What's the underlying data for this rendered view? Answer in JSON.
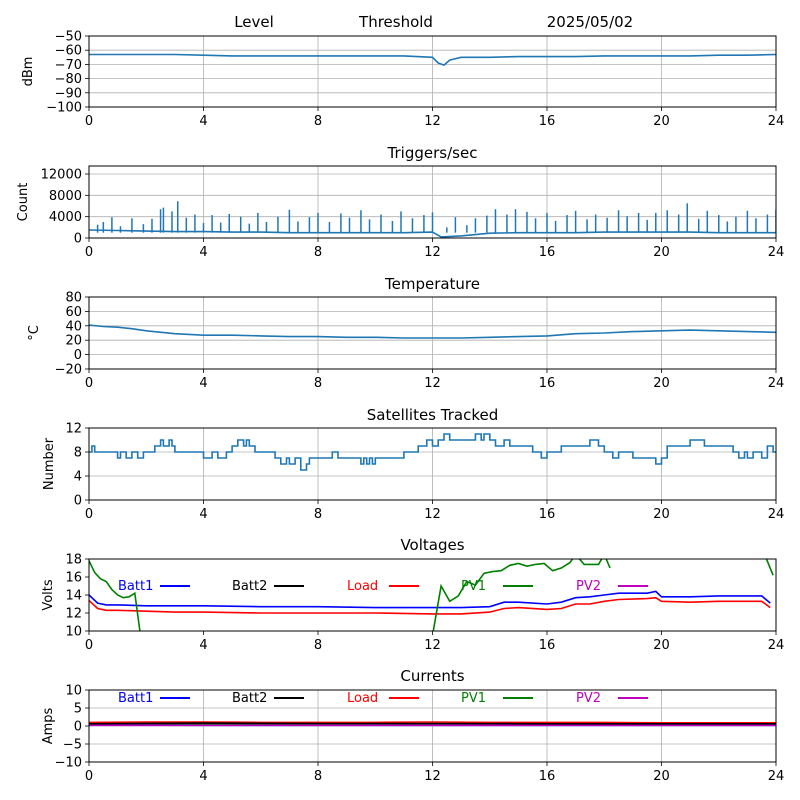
{
  "chart_data": [
    {
      "type": "line",
      "title_parts": [
        "Level",
        "Threshold",
        "2025/05/02"
      ],
      "ylabel": "dBm",
      "ylim": [
        -100,
        -50
      ],
      "yticks": [
        -50,
        -60,
        -70,
        -80,
        -90,
        -100
      ],
      "xlim": [
        0,
        24
      ],
      "xticks": [
        0,
        4,
        8,
        12,
        16,
        20,
        24
      ],
      "grid": true,
      "series": [
        {
          "color": "#1f77b4",
          "x": [
            0,
            1,
            2,
            3,
            4,
            5,
            6,
            7,
            8,
            9,
            10,
            11,
            12,
            12.2,
            12.4,
            12.6,
            13,
            14,
            15,
            16,
            17,
            18,
            19,
            20,
            21,
            22,
            23,
            24
          ],
          "y": [
            -63,
            -63,
            -63,
            -63,
            -63.5,
            -64,
            -64,
            -64,
            -64,
            -64,
            -64,
            -64,
            -65,
            -69,
            -70.5,
            -67,
            -65,
            -65,
            -64.5,
            -64.5,
            -64.5,
            -64,
            -64,
            -64,
            -64,
            -63.5,
            -63.5,
            -63
          ]
        }
      ]
    },
    {
      "type": "line",
      "title": "Triggers/sec",
      "ylabel": "Count",
      "ylim": [
        0,
        13500
      ],
      "yticks": [
        0,
        4000,
        8000,
        12000
      ],
      "xlim": [
        0,
        24
      ],
      "xticks": [
        0,
        4,
        8,
        12,
        16,
        20,
        24
      ],
      "grid": true,
      "baseline": [
        [
          0,
          1500
        ],
        [
          1,
          1400
        ],
        [
          2,
          1300
        ],
        [
          3,
          1200
        ],
        [
          4,
          1200
        ],
        [
          5,
          1100
        ],
        [
          6,
          1100
        ],
        [
          7,
          1000
        ],
        [
          8,
          1000
        ],
        [
          9,
          1000
        ],
        [
          10,
          1000
        ],
        [
          11,
          1000
        ],
        [
          12,
          1100
        ],
        [
          12.3,
          200
        ],
        [
          13,
          400
        ],
        [
          14,
          900
        ],
        [
          15,
          1000
        ],
        [
          16,
          1000
        ],
        [
          17,
          1000
        ],
        [
          18,
          1100
        ],
        [
          19,
          1100
        ],
        [
          20,
          1100
        ],
        [
          21,
          1100
        ],
        [
          22,
          1000
        ],
        [
          23,
          1000
        ],
        [
          24,
          1000
        ]
      ],
      "spikes": [
        [
          0.3,
          2500
        ],
        [
          0.5,
          3000
        ],
        [
          0.8,
          3900
        ],
        [
          1.1,
          2200
        ],
        [
          1.5,
          3700
        ],
        [
          1.9,
          2600
        ],
        [
          2.2,
          3600
        ],
        [
          2.5,
          5400
        ],
        [
          2.6,
          5700
        ],
        [
          2.9,
          5000
        ],
        [
          3.1,
          6900
        ],
        [
          3.4,
          3800
        ],
        [
          3.7,
          4400
        ],
        [
          4.0,
          2800
        ],
        [
          4.3,
          4300
        ],
        [
          4.6,
          2900
        ],
        [
          4.9,
          4500
        ],
        [
          5.3,
          4000
        ],
        [
          5.6,
          2700
        ],
        [
          5.9,
          4700
        ],
        [
          6.2,
          3000
        ],
        [
          6.6,
          4000
        ],
        [
          7.0,
          5300
        ],
        [
          7.3,
          3100
        ],
        [
          7.7,
          3900
        ],
        [
          8.0,
          4700
        ],
        [
          8.4,
          3000
        ],
        [
          8.8,
          4600
        ],
        [
          9.1,
          3800
        ],
        [
          9.5,
          5200
        ],
        [
          9.8,
          3500
        ],
        [
          10.2,
          4400
        ],
        [
          10.6,
          3200
        ],
        [
          10.9,
          5000
        ],
        [
          11.3,
          3700
        ],
        [
          11.7,
          4300
        ],
        [
          12.0,
          4800
        ],
        [
          12.5,
          2000
        ],
        [
          12.8,
          3900
        ],
        [
          13.2,
          2400
        ],
        [
          13.5,
          3700
        ],
        [
          13.9,
          4200
        ],
        [
          14.2,
          5400
        ],
        [
          14.6,
          4400
        ],
        [
          14.9,
          5400
        ],
        [
          15.3,
          4900
        ],
        [
          15.6,
          3700
        ],
        [
          16.0,
          4700
        ],
        [
          16.3,
          3200
        ],
        [
          16.7,
          4300
        ],
        [
          17.0,
          5100
        ],
        [
          17.4,
          3500
        ],
        [
          17.7,
          4400
        ],
        [
          18.1,
          3800
        ],
        [
          18.5,
          5200
        ],
        [
          18.8,
          4100
        ],
        [
          19.2,
          4700
        ],
        [
          19.5,
          3400
        ],
        [
          19.8,
          4700
        ],
        [
          20.2,
          5200
        ],
        [
          20.6,
          4400
        ],
        [
          20.9,
          6500
        ],
        [
          21.3,
          3600
        ],
        [
          21.6,
          5100
        ],
        [
          22.0,
          4300
        ],
        [
          22.3,
          3100
        ],
        [
          22.6,
          4000
        ],
        [
          23.0,
          5100
        ],
        [
          23.3,
          3700
        ],
        [
          23.7,
          4400
        ],
        [
          24.0,
          5300
        ]
      ]
    },
    {
      "type": "line",
      "title": "Temperature",
      "ylabel": "°C",
      "ylim": [
        -20,
        80
      ],
      "yticks": [
        -20,
        0,
        20,
        40,
        60,
        80
      ],
      "xlim": [
        0,
        24
      ],
      "xticks": [
        0,
        4,
        8,
        12,
        16,
        20,
        24
      ],
      "grid": true,
      "series": [
        {
          "color": "#1f77b4",
          "x": [
            0,
            0.5,
            1,
            1.5,
            2,
            3,
            4,
            5,
            6,
            7,
            8,
            9,
            10,
            11,
            12,
            13,
            14,
            15,
            16,
            17,
            18,
            19,
            20,
            21,
            22,
            23,
            24
          ],
          "y": [
            41,
            39,
            38,
            36,
            33,
            29,
            27,
            27,
            26,
            25,
            25,
            24,
            24,
            23,
            23,
            23,
            24,
            25,
            26,
            29,
            30,
            32,
            33,
            34,
            33,
            32,
            31
          ]
        }
      ]
    },
    {
      "type": "line",
      "title": "Satellites Tracked",
      "ylabel": "Number",
      "ylim": [
        0,
        12
      ],
      "yticks": [
        0,
        4,
        8,
        12
      ],
      "xlim": [
        0,
        24
      ],
      "xticks": [
        0,
        4,
        8,
        12,
        16,
        20,
        24
      ],
      "grid": true,
      "series": [
        {
          "color": "#1f77b4",
          "step": true,
          "x": [
            0,
            0.1,
            0.2,
            1.0,
            1.1,
            1.3,
            1.5,
            1.7,
            1.9,
            2.3,
            2.5,
            2.6,
            2.8,
            2.9,
            3.0,
            4.0,
            4.3,
            4.5,
            4.8,
            5.0,
            5.2,
            5.4,
            5.5,
            5.6,
            5.8,
            6.0,
            6.5,
            6.7,
            6.9,
            7.0,
            7.2,
            7.4,
            7.6,
            7.7,
            8.5,
            8.7,
            9.0,
            9.5,
            9.6,
            9.7,
            9.8,
            9.9,
            10.0,
            10.5,
            11.0,
            11.5,
            11.8,
            12.0,
            12.2,
            12.4,
            12.6,
            12.8,
            13.0,
            13.5,
            13.7,
            13.8,
            14.0,
            14.2,
            14.5,
            14.7,
            15.0,
            15.5,
            15.8,
            16.0,
            16.5,
            17.5,
            17.8,
            18.0,
            18.3,
            18.5,
            18.8,
            19.0,
            19.5,
            19.8,
            20.0,
            20.2,
            21.0,
            21.5,
            22.0,
            22.5,
            22.7,
            22.9,
            23.0,
            23.2,
            23.5,
            23.7,
            23.9
          ],
          "y": [
            8,
            9,
            8,
            7,
            8,
            7,
            8,
            7,
            8,
            9,
            10,
            9,
            10,
            9,
            8,
            7,
            8,
            7,
            8,
            9,
            10,
            9,
            10,
            9,
            8,
            8,
            7,
            6,
            7,
            6,
            7,
            5,
            6,
            7,
            8,
            7,
            7,
            6,
            7,
            6,
            7,
            6,
            7,
            7,
            8,
            9,
            10,
            9,
            10,
            11,
            10,
            10,
            10,
            11,
            10,
            11,
            10,
            9,
            10,
            9,
            9,
            8,
            7,
            8,
            9,
            10,
            9,
            8,
            7,
            8,
            8,
            7,
            7,
            6,
            7,
            9,
            10,
            9,
            9,
            8,
            7,
            8,
            7,
            8,
            7,
            9,
            8
          ]
        }
      ]
    },
    {
      "type": "line",
      "title": "Voltages",
      "ylabel": "Volts",
      "ylim": [
        10,
        18
      ],
      "yticks": [
        10,
        12,
        14,
        16,
        18
      ],
      "xlim": [
        0,
        24
      ],
      "xticks": [
        0,
        4,
        8,
        12,
        16,
        20,
        24
      ],
      "grid": false,
      "legend": [
        {
          "name": "Batt1",
          "color": "#0000ff"
        },
        {
          "name": "Batt2",
          "color": "#000000"
        },
        {
          "name": "Load",
          "color": "#ff0000"
        },
        {
          "name": "PV1",
          "color": "#008000"
        },
        {
          "name": "PV2",
          "color": "#bf00bf"
        }
      ],
      "series": [
        {
          "color": "#0000ff",
          "x": [
            0,
            0.3,
            0.6,
            1,
            2,
            3,
            4,
            6,
            8,
            10,
            12,
            13,
            14,
            14.5,
            15,
            16,
            16.5,
            17,
            17.5,
            18,
            18.5,
            19.5,
            19.8,
            20,
            21,
            22,
            23,
            23.5,
            23.8
          ],
          "y": [
            14.0,
            13.1,
            12.9,
            12.9,
            12.8,
            12.8,
            12.8,
            12.7,
            12.7,
            12.6,
            12.6,
            12.6,
            12.7,
            13.2,
            13.2,
            13.0,
            13.2,
            13.7,
            13.8,
            14.0,
            14.2,
            14.2,
            14.4,
            13.8,
            13.8,
            13.9,
            13.9,
            13.9,
            13.1
          ]
        },
        {
          "color": "#ff0000",
          "x": [
            0,
            0.3,
            0.6,
            1,
            2,
            3,
            4,
            6,
            8,
            10,
            12,
            13,
            14,
            14.5,
            15,
            16,
            16.5,
            17,
            17.5,
            18,
            18.5,
            19.5,
            19.8,
            20,
            21,
            22,
            23,
            23.5,
            23.8
          ],
          "y": [
            13.4,
            12.5,
            12.3,
            12.3,
            12.2,
            12.1,
            12.1,
            12.0,
            12.0,
            12.0,
            11.9,
            11.9,
            12.1,
            12.5,
            12.6,
            12.4,
            12.5,
            13.0,
            13.0,
            13.3,
            13.5,
            13.6,
            13.7,
            13.3,
            13.2,
            13.3,
            13.3,
            13.3,
            12.6
          ]
        },
        {
          "color": "#008000",
          "breaks": true,
          "segments": [
            {
              "x": [
                0,
                0.2,
                0.4,
                0.6,
                0.8,
                1.0,
                1.2,
                1.4,
                1.6,
                1.8
              ],
              "y": [
                17.8,
                16.5,
                15.8,
                15.5,
                14.6,
                14.0,
                13.7,
                13.8,
                14.2,
                9.5
              ]
            },
            {
              "x": [
                12.0,
                12.3,
                12.6,
                12.9,
                13.2,
                13.5,
                13.8,
                14.1,
                14.4,
                14.7,
                15.0,
                15.3,
                15.6,
                15.9,
                16.2,
                16.5,
                16.8,
                17.0,
                17.3,
                17.8,
                18.0,
                18.2
              ],
              "y": [
                9.5,
                15.0,
                13.3,
                13.9,
                15.5,
                15.1,
                16.4,
                16.6,
                16.7,
                17.3,
                17.5,
                17.2,
                17.4,
                17.5,
                16.7,
                17.0,
                17.6,
                18.5,
                17.4,
                17.4,
                18.5,
                17.0
              ]
            },
            {
              "x": [
                23.6,
                23.9
              ],
              "y": [
                18.5,
                16.2
              ]
            }
          ]
        }
      ]
    },
    {
      "type": "line",
      "title": "Currents",
      "ylabel": "Amps",
      "ylim": [
        -10,
        10
      ],
      "yticks": [
        -10,
        -5,
        0,
        5,
        10
      ],
      "xlim": [
        0,
        24
      ],
      "xticks": [
        0,
        4,
        8,
        12,
        16,
        20,
        24
      ],
      "grid": true,
      "legend": [
        {
          "name": "Batt1",
          "color": "#0000ff"
        },
        {
          "name": "Batt2",
          "color": "#000000"
        },
        {
          "name": "Load",
          "color": "#ff0000"
        },
        {
          "name": "PV1",
          "color": "#008000"
        },
        {
          "name": "PV2",
          "color": "#bf00bf"
        }
      ],
      "series": [
        {
          "color": "#008000",
          "x": [
            0,
            4,
            8,
            12,
            16,
            20,
            24
          ],
          "y": [
            0.7,
            0.6,
            0.5,
            0.5,
            0.5,
            0.4,
            0.4
          ]
        },
        {
          "color": "#0000ff",
          "x": [
            0,
            4,
            8,
            12,
            16,
            20,
            24
          ],
          "y": [
            0.3,
            0.2,
            0.2,
            0.2,
            0.2,
            0.2,
            0.2
          ]
        },
        {
          "color": "#bf00bf",
          "x": [
            0,
            4,
            8,
            12,
            16,
            20,
            24
          ],
          "y": [
            0.2,
            0.2,
            0.2,
            0.2,
            0.2,
            0.2,
            0.2
          ]
        },
        {
          "color": "#ff0000",
          "x": [
            0,
            2,
            4,
            6,
            8,
            10,
            12,
            14,
            16,
            18,
            20,
            22,
            24
          ],
          "y": [
            1.0,
            1.1,
            1.1,
            1.0,
            1.0,
            1.0,
            1.1,
            1.0,
            1.0,
            1.0,
            0.9,
            0.9,
            0.9
          ]
        },
        {
          "color": "#000000",
          "x": [
            0,
            4,
            8,
            12,
            16,
            20,
            24
          ],
          "y": [
            0.6,
            0.8,
            0.7,
            0.7,
            0.6,
            0.6,
            0.6
          ]
        }
      ]
    }
  ]
}
